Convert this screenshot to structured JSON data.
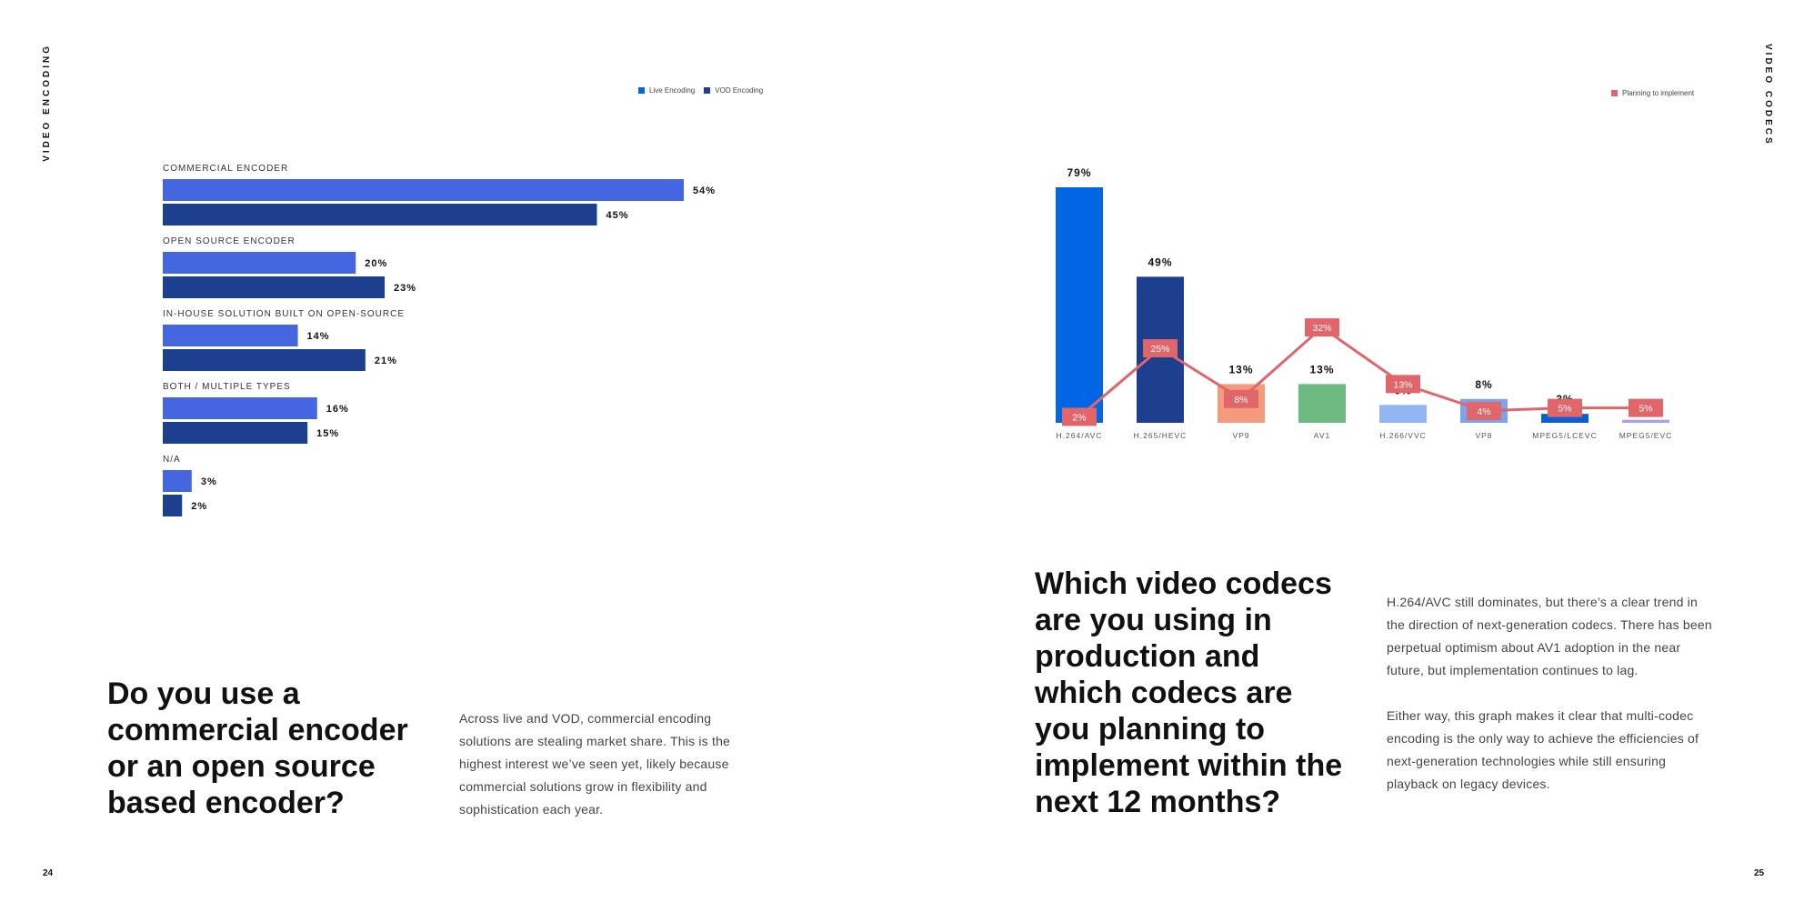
{
  "pages": {
    "left": {
      "side_label": "VIDEO ENCODING",
      "page_number": "24"
    },
    "right": {
      "side_label": "VIDEO CODECS",
      "page_number": "25"
    }
  },
  "left_section": {
    "headline": "Do you use a commercial encoder or an open source based encoder?",
    "body": "Across live and VOD, commercial encoding solutions are stealing market share. This is the highest interest we’ve seen yet, likely because commercial solutions grow in flexibility and sophistication each year."
  },
  "right_section": {
    "headline": "Which video codecs are you using in production and which codecs are you planning to implement within the next 12 months?",
    "body_paragraphs": [
      "H.264/AVC still dominates, but there’s a clear trend in the direction of next-generation codecs. There has been perpetual optimism about AV1 adoption in the near future, but implementation continues to lag.",
      "Either way, this graph makes it clear that multi-codec encoding is the only way to achieve the efficiencies of next-generation technologies while still ensuring playback on legacy devices."
    ]
  },
  "chart_data": [
    {
      "type": "bar",
      "orientation": "horizontal",
      "categories": [
        "COMMERCIAL ENCODER",
        "OPEN SOURCE ENCODER",
        "IN-HOUSE SOLUTION BUILT ON OPEN-SOURCE",
        "BOTH / MULTIPLE TYPES",
        "N/A"
      ],
      "series": [
        {
          "name": "Live Encoding",
          "values": [
            54,
            20,
            14,
            16,
            3
          ],
          "labels": [
            "54%",
            "20%",
            "14%",
            "16%",
            "3%"
          ],
          "color": "#4466e0"
        },
        {
          "name": "VOD Encoding",
          "values": [
            45,
            23,
            21,
            15,
            2
          ],
          "labels": [
            "45%",
            "23%",
            "21%",
            "15%",
            "2%"
          ],
          "color": "#1c3f8f"
        }
      ],
      "xlim": [
        0,
        54
      ],
      "legend_position": "top-right",
      "grid": false
    },
    {
      "type": "bar",
      "categories": [
        "H.264/AVC",
        "H.265/HEVC",
        "VP9",
        "AV1",
        "H.266/VVC",
        "VP8",
        "MPEG5/LCEVC",
        "MPEG5/EVC"
      ],
      "bar_values": [
        79,
        49,
        13,
        13,
        6,
        8,
        3,
        1
      ],
      "bar_labels": [
        "79%",
        "49%",
        "13%",
        "13%",
        "6%",
        "8%",
        "3%",
        "1%"
      ],
      "bar_colors": [
        "#0066e6",
        "#1c3f8f",
        "#f59a7c",
        "#6dbb82",
        "#91b5f5",
        "#7ca3ef",
        "#0a5fd8",
        "#a7a2e8"
      ],
      "series": [
        {
          "name": "Planning to implement",
          "type": "line",
          "values": [
            2,
            25,
            8,
            32,
            13,
            4,
            5,
            5
          ],
          "labels": [
            "2%",
            "25%",
            "8%",
            "32%",
            "13%",
            "4%",
            "5%",
            "5%"
          ],
          "color": "#e0666a"
        }
      ],
      "ylim": [
        0,
        79
      ],
      "legend_position": "top-right",
      "grid": false
    }
  ]
}
